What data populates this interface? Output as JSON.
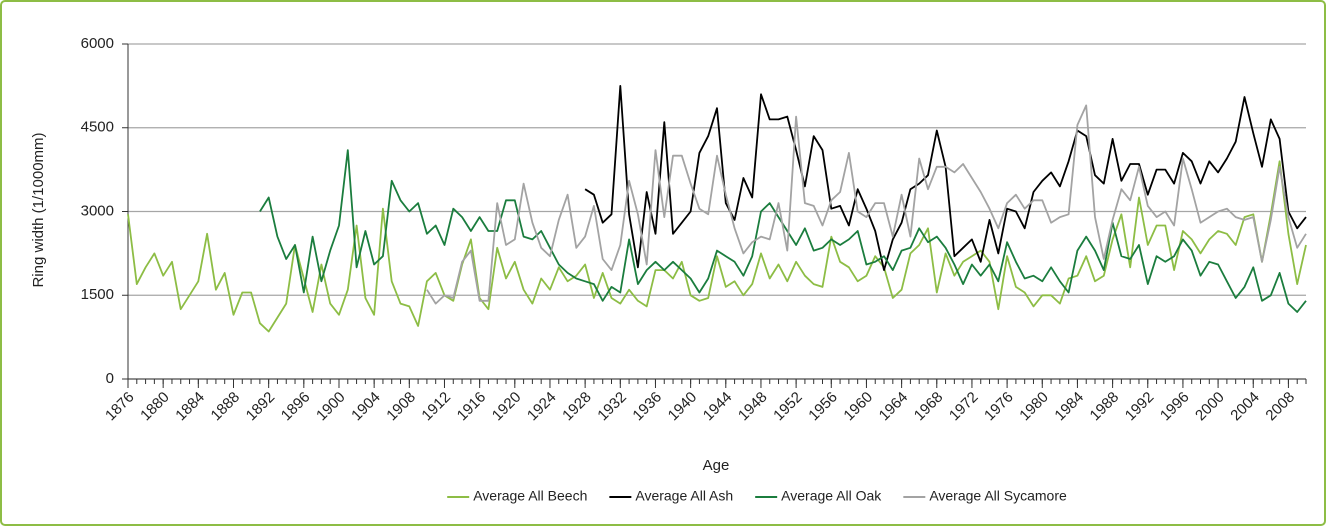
{
  "chart_data": {
    "type": "line",
    "y_label": "Ring width (1/1000mm)",
    "x_label": "Age",
    "x": [
      1876,
      1877,
      1878,
      1879,
      1880,
      1881,
      1882,
      1883,
      1884,
      1885,
      1886,
      1887,
      1888,
      1889,
      1890,
      1891,
      1892,
      1893,
      1894,
      1895,
      1896,
      1897,
      1898,
      1899,
      1900,
      1901,
      1902,
      1903,
      1904,
      1905,
      1906,
      1907,
      1908,
      1909,
      1910,
      1911,
      1912,
      1913,
      1914,
      1915,
      1916,
      1917,
      1918,
      1919,
      1920,
      1921,
      1922,
      1923,
      1924,
      1925,
      1926,
      1927,
      1928,
      1929,
      1930,
      1931,
      1932,
      1933,
      1934,
      1935,
      1936,
      1937,
      1938,
      1939,
      1940,
      1941,
      1942,
      1943,
      1944,
      1945,
      1946,
      1947,
      1948,
      1949,
      1950,
      1951,
      1952,
      1953,
      1954,
      1955,
      1956,
      1957,
      1958,
      1959,
      1960,
      1961,
      1962,
      1963,
      1964,
      1965,
      1966,
      1967,
      1968,
      1969,
      1970,
      1971,
      1972,
      1973,
      1974,
      1975,
      1976,
      1977,
      1978,
      1979,
      1980,
      1981,
      1982,
      1983,
      1984,
      1985,
      1986,
      1987,
      1988,
      1989,
      1990,
      1991,
      1992,
      1993,
      1994,
      1995,
      1996,
      1997,
      1998,
      1999,
      2000,
      2001,
      2002,
      2003,
      2004,
      2005,
      2006,
      2007,
      2008,
      2009,
      2010
    ],
    "xlim": [
      1876,
      2010
    ],
    "xticks": [
      1876,
      1880,
      1884,
      1888,
      1892,
      1896,
      1900,
      1904,
      1908,
      1912,
      1916,
      1920,
      1924,
      1928,
      1932,
      1936,
      1940,
      1944,
      1948,
      1952,
      1956,
      1960,
      1964,
      1968,
      1972,
      1976,
      1980,
      1984,
      1988,
      1992,
      1996,
      2000,
      2004,
      2008
    ],
    "ylim": [
      0,
      6000
    ],
    "yticks": [
      0,
      1500,
      3000,
      4500,
      6000
    ],
    "grid": true,
    "legend": "bottom",
    "series": [
      {
        "name": "Average All Beech",
        "color": "#8dbd45",
        "values": [
          2950,
          1700,
          2000,
          2250,
          1850,
          2100,
          1250,
          1500,
          1750,
          2600,
          1600,
          1900,
          1150,
          1550,
          1550,
          1000,
          850,
          1100,
          1350,
          2400,
          1800,
          1200,
          2050,
          1350,
          1150,
          1600,
          2750,
          1450,
          1150,
          3050,
          1750,
          1350,
          1300,
          950,
          1750,
          1900,
          1500,
          1400,
          2050,
          2500,
          1450,
          1250,
          2350,
          1800,
          2100,
          1600,
          1350,
          1800,
          1600,
          2000,
          1750,
          1850,
          2050,
          1450,
          1900,
          1450,
          1350,
          1600,
          1400,
          1300,
          1950,
          1950,
          1800,
          2100,
          1500,
          1400,
          1450,
          2200,
          1650,
          1750,
          1500,
          1700,
          2250,
          1800,
          2050,
          1750,
          2100,
          1850,
          1700,
          1650,
          2550,
          2100,
          2000,
          1750,
          1850,
          2200,
          2000,
          1450,
          1600,
          2250,
          2400,
          2700,
          1550,
          2250,
          1850,
          2100,
          2200,
          2300,
          2100,
          1250,
          2200,
          1650,
          1550,
          1300,
          1500,
          1500,
          1350,
          1800,
          1850,
          2200,
          1750,
          1850,
          2500,
          2950,
          2000,
          3250,
          2400,
          2750,
          2750,
          1950,
          2650,
          2500,
          2250,
          2500,
          2650,
          2600,
          2400,
          2900,
          2950,
          2100,
          2950,
          3900,
          2600,
          1700,
          2400
        ]
      },
      {
        "name": "Average All Ash",
        "color": "#000000",
        "values": [
          null,
          null,
          null,
          null,
          null,
          null,
          null,
          null,
          null,
          null,
          null,
          null,
          null,
          null,
          null,
          null,
          null,
          null,
          null,
          null,
          null,
          null,
          null,
          null,
          null,
          null,
          null,
          null,
          null,
          null,
          null,
          null,
          null,
          null,
          null,
          null,
          null,
          null,
          null,
          null,
          null,
          null,
          null,
          null,
          null,
          null,
          null,
          null,
          null,
          null,
          null,
          null,
          3400,
          3300,
          2800,
          2950,
          5250,
          2950,
          2000,
          3350,
          2600,
          4600,
          2600,
          2800,
          3000,
          4050,
          4350,
          4850,
          3150,
          2850,
          3600,
          3250,
          5100,
          4650,
          4650,
          4700,
          4100,
          3450,
          4350,
          4100,
          3050,
          3100,
          2750,
          3400,
          3050,
          2650,
          1950,
          2500,
          2800,
          3400,
          3500,
          3650,
          4450,
          3800,
          2200,
          2350,
          2500,
          2100,
          2850,
          2250,
          3050,
          3000,
          2700,
          3350,
          3550,
          3700,
          3450,
          3900,
          4450,
          4350,
          3650,
          3500,
          4300,
          3550,
          3850,
          3850,
          3300,
          3750,
          3750,
          3500,
          4050,
          3900,
          3500,
          3900,
          3700,
          3950,
          4250,
          5050,
          4400,
          3800,
          4650,
          4300,
          3000,
          2700,
          2900
        ]
      },
      {
        "name": "Average All Oak",
        "color": "#1b7d3e",
        "values": [
          null,
          null,
          null,
          null,
          null,
          null,
          null,
          null,
          null,
          null,
          null,
          null,
          null,
          null,
          null,
          3000,
          3250,
          2550,
          2150,
          2400,
          1550,
          2550,
          1750,
          2300,
          2750,
          4100,
          2000,
          2650,
          2050,
          2200,
          3550,
          3200,
          3000,
          3150,
          2600,
          2750,
          2400,
          3050,
          2900,
          2650,
          2900,
          2650,
          2650,
          3200,
          3200,
          2550,
          2500,
          2650,
          2350,
          2050,
          1900,
          1800,
          1750,
          1700,
          1400,
          1650,
          1550,
          2500,
          1700,
          1950,
          2100,
          1950,
          2100,
          1950,
          1800,
          1550,
          1800,
          2300,
          2200,
          2100,
          1850,
          2200,
          3000,
          3150,
          2900,
          2650,
          2400,
          2700,
          2300,
          2350,
          2500,
          2400,
          2500,
          2650,
          2050,
          2100,
          2200,
          1950,
          2300,
          2350,
          2700,
          2450,
          2550,
          2350,
          2050,
          1700,
          2050,
          1850,
          2050,
          1750,
          2450,
          2100,
          1800,
          1850,
          1750,
          2000,
          1750,
          1550,
          2300,
          2550,
          2300,
          1950,
          2800,
          2200,
          2150,
          2400,
          1700,
          2200,
          2100,
          2200,
          2500,
          2300,
          1850,
          2100,
          2050,
          1750,
          1450,
          1650,
          2000,
          1400,
          1500,
          1900,
          1350,
          1200,
          1400
        ]
      },
      {
        "name": "Average All Sycamore",
        "color": "#a3a3a3",
        "values": [
          null,
          null,
          null,
          null,
          null,
          null,
          null,
          null,
          null,
          null,
          null,
          null,
          null,
          null,
          null,
          null,
          null,
          null,
          null,
          null,
          null,
          null,
          null,
          null,
          null,
          null,
          null,
          null,
          null,
          null,
          null,
          null,
          null,
          null,
          1600,
          1350,
          1500,
          1450,
          2100,
          2300,
          1400,
          1400,
          3150,
          2400,
          2500,
          3500,
          2800,
          2350,
          2200,
          2850,
          3300,
          2350,
          2550,
          3100,
          2150,
          1950,
          2400,
          3550,
          2950,
          2050,
          4100,
          2900,
          4000,
          4000,
          3500,
          3050,
          2950,
          4000,
          3300,
          2700,
          2250,
          2450,
          2550,
          2500,
          3150,
          2300,
          4700,
          3150,
          3100,
          2750,
          3200,
          3350,
          4050,
          3000,
          2900,
          3150,
          3150,
          2550,
          3300,
          2550,
          3950,
          3400,
          3800,
          3800,
          3700,
          3850,
          3600,
          3350,
          3050,
          2700,
          3150,
          3300,
          3050,
          3200,
          3200,
          2800,
          2900,
          2950,
          4550,
          4900,
          2900,
          2150,
          2850,
          3400,
          3200,
          3800,
          3100,
          2900,
          3000,
          2750,
          3950,
          3400,
          2800,
          2900,
          3000,
          3050,
          2900,
          2850,
          2900,
          2100,
          2850,
          3800,
          2900,
          2350,
          2600
        ]
      }
    ]
  }
}
